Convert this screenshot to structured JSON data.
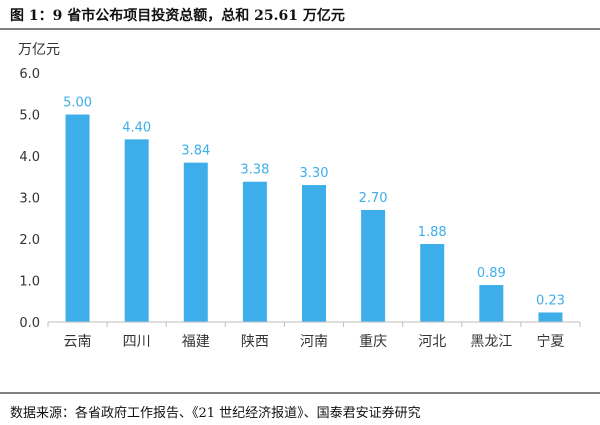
{
  "title": "图 1：9 省市公布项目投资总额，总和 25.61 万亿元",
  "source": "数据来源：各省政府工作报告、《21 世纪经济报道》、国泰君安证券研究",
  "colors": {
    "bar": "#3daee9",
    "value_label": "#3daee9",
    "axis": "#bfbfbf",
    "text": "#333333"
  },
  "chart_data": {
    "type": "bar",
    "title": "",
    "unit_label": "万亿元",
    "xlabel": "",
    "ylabel": "",
    "categories": [
      "云南",
      "四川",
      "福建",
      "陕西",
      "河南",
      "重庆",
      "河北",
      "黑龙江",
      "宁夏"
    ],
    "values": [
      5.0,
      4.4,
      3.84,
      3.38,
      3.3,
      2.7,
      1.88,
      0.89,
      0.23
    ],
    "value_labels": [
      "5.00",
      "4.40",
      "3.84",
      "3.38",
      "3.30",
      "2.70",
      "1.88",
      "0.89",
      "0.23"
    ],
    "ylim": [
      0,
      6
    ],
    "yticks": [
      0,
      1,
      2,
      3,
      4,
      5,
      6
    ],
    "ytick_labels": [
      "0.0",
      "1.0",
      "2.0",
      "3.0",
      "4.0",
      "5.0",
      "6.0"
    ],
    "grid": false,
    "legend": "none"
  }
}
